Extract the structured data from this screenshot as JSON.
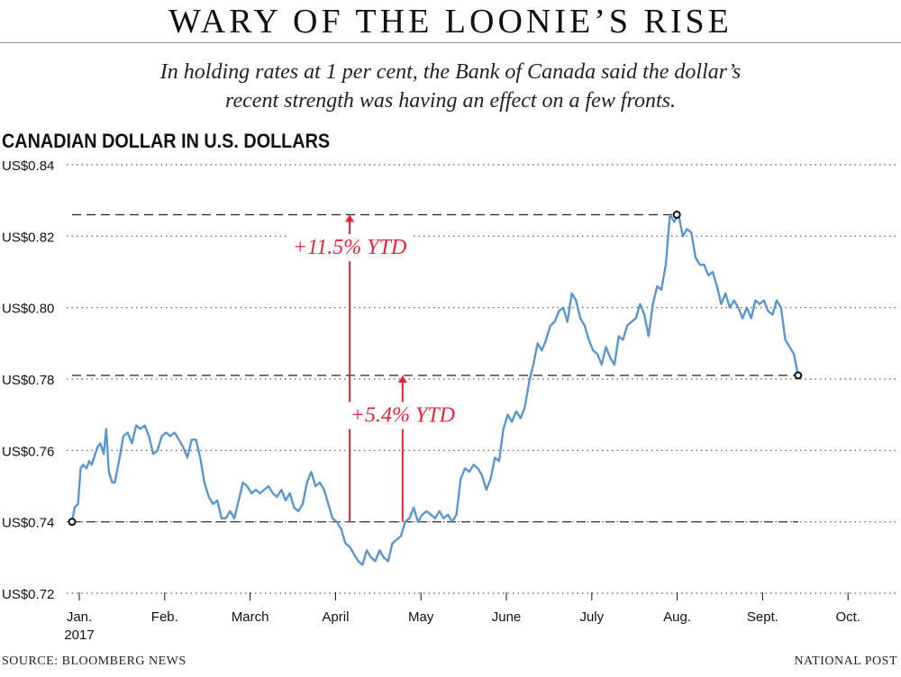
{
  "headline": "WARY OF THE LOONIE’S RISE",
  "deck_line1": "In holding rates at 1 per cent, the Bank of Canada said the dollar’s",
  "deck_line2": "recent strength was having an effect on a few fronts.",
  "footer": {
    "source": "SOURCE: BLOOMBERG NEWS",
    "credit": "NATIONAL POST"
  },
  "colors": {
    "line": "#5b97cc",
    "annotation": "#e0263a",
    "text": "#111111",
    "grid": "#555555"
  },
  "chart_data": {
    "type": "line",
    "title": "CANADIAN DOLLAR IN  U.S. DOLLARS",
    "ylim": [
      0.72,
      0.84
    ],
    "yticks": [
      0.72,
      0.74,
      0.76,
      0.78,
      0.8,
      0.82,
      0.84
    ],
    "ytick_labels": [
      "US$0.72",
      "US$0.74",
      "US$0.76",
      "US$0.78",
      "US$0.80",
      "US$0.82",
      "US$0.84"
    ],
    "grid": "horizontal dotted",
    "xticks": [
      {
        "label": "Jan.",
        "sublabel": "2017",
        "month": 0
      },
      {
        "label": "Feb.",
        "month": 1
      },
      {
        "label": "March",
        "month": 2
      },
      {
        "label": "April",
        "month": 3
      },
      {
        "label": "May",
        "month": 4
      },
      {
        "label": "June",
        "month": 5
      },
      {
        "label": "July",
        "month": 6
      },
      {
        "label": "Aug.",
        "month": 7
      },
      {
        "label": "Sept.",
        "month": 8
      },
      {
        "label": "Oct.",
        "month": 9
      }
    ],
    "series": [
      {
        "points": [
          [
            0.0,
            0.74
          ],
          [
            0.03,
            0.744
          ],
          [
            0.07,
            0.745
          ],
          [
            0.1,
            0.755
          ],
          [
            0.13,
            0.756
          ],
          [
            0.17,
            0.755
          ],
          [
            0.2,
            0.757
          ],
          [
            0.23,
            0.756
          ],
          [
            0.27,
            0.759
          ],
          [
            0.3,
            0.761
          ],
          [
            0.33,
            0.762
          ],
          [
            0.37,
            0.759
          ],
          [
            0.4,
            0.766
          ],
          [
            0.43,
            0.754
          ],
          [
            0.47,
            0.751
          ],
          [
            0.5,
            0.751
          ],
          [
            0.55,
            0.757
          ],
          [
            0.6,
            0.764
          ],
          [
            0.65,
            0.765
          ],
          [
            0.7,
            0.762
          ],
          [
            0.75,
            0.767
          ],
          [
            0.8,
            0.766
          ],
          [
            0.85,
            0.767
          ],
          [
            0.9,
            0.764
          ],
          [
            0.95,
            0.759
          ],
          [
            1.0,
            0.76
          ],
          [
            1.05,
            0.764
          ],
          [
            1.1,
            0.765
          ],
          [
            1.15,
            0.764
          ],
          [
            1.2,
            0.765
          ],
          [
            1.25,
            0.763
          ],
          [
            1.3,
            0.761
          ],
          [
            1.35,
            0.758
          ],
          [
            1.4,
            0.763
          ],
          [
            1.45,
            0.763
          ],
          [
            1.5,
            0.758
          ],
          [
            1.55,
            0.751
          ],
          [
            1.6,
            0.747
          ],
          [
            1.65,
            0.745
          ],
          [
            1.7,
            0.746
          ],
          [
            1.75,
            0.741
          ],
          [
            1.8,
            0.741
          ],
          [
            1.85,
            0.743
          ],
          [
            1.9,
            0.741
          ],
          [
            1.95,
            0.746
          ],
          [
            2.0,
            0.751
          ],
          [
            2.05,
            0.75
          ],
          [
            2.1,
            0.748
          ],
          [
            2.15,
            0.749
          ],
          [
            2.2,
            0.748
          ],
          [
            2.25,
            0.749
          ],
          [
            2.3,
            0.75
          ],
          [
            2.35,
            0.748
          ],
          [
            2.4,
            0.747
          ],
          [
            2.45,
            0.749
          ],
          [
            2.5,
            0.746
          ],
          [
            2.55,
            0.748
          ],
          [
            2.6,
            0.744
          ],
          [
            2.65,
            0.743
          ],
          [
            2.7,
            0.745
          ],
          [
            2.75,
            0.751
          ],
          [
            2.8,
            0.754
          ],
          [
            2.85,
            0.75
          ],
          [
            2.9,
            0.751
          ],
          [
            2.95,
            0.749
          ],
          [
            3.0,
            0.745
          ],
          [
            3.05,
            0.741
          ],
          [
            3.1,
            0.74
          ],
          [
            3.15,
            0.738
          ],
          [
            3.2,
            0.734
          ],
          [
            3.25,
            0.733
          ],
          [
            3.3,
            0.731
          ],
          [
            3.35,
            0.729
          ],
          [
            3.4,
            0.728
          ],
          [
            3.45,
            0.732
          ],
          [
            3.5,
            0.73
          ],
          [
            3.55,
            0.729
          ],
          [
            3.6,
            0.732
          ],
          [
            3.65,
            0.73
          ],
          [
            3.7,
            0.729
          ],
          [
            3.75,
            0.734
          ],
          [
            3.8,
            0.735
          ],
          [
            3.85,
            0.736
          ],
          [
            3.9,
            0.74
          ],
          [
            3.95,
            0.741
          ],
          [
            4.0,
            0.744
          ],
          [
            4.05,
            0.74
          ],
          [
            4.1,
            0.742
          ],
          [
            4.15,
            0.743
          ],
          [
            4.2,
            0.742
          ],
          [
            4.25,
            0.741
          ],
          [
            4.3,
            0.743
          ],
          [
            4.35,
            0.741
          ],
          [
            4.4,
            0.742
          ],
          [
            4.45,
            0.74
          ],
          [
            4.5,
            0.742
          ],
          [
            4.55,
            0.752
          ],
          [
            4.6,
            0.755
          ],
          [
            4.65,
            0.754
          ],
          [
            4.7,
            0.756
          ],
          [
            4.75,
            0.755
          ],
          [
            4.8,
            0.753
          ],
          [
            4.85,
            0.749
          ],
          [
            4.9,
            0.752
          ],
          [
            4.95,
            0.758
          ],
          [
            5.0,
            0.757
          ],
          [
            5.05,
            0.766
          ],
          [
            5.1,
            0.77
          ],
          [
            5.15,
            0.768
          ],
          [
            5.2,
            0.771
          ],
          [
            5.25,
            0.769
          ],
          [
            5.3,
            0.772
          ],
          [
            5.35,
            0.779
          ],
          [
            5.4,
            0.784
          ],
          [
            5.45,
            0.79
          ],
          [
            5.5,
            0.788
          ],
          [
            5.55,
            0.791
          ],
          [
            5.6,
            0.795
          ],
          [
            5.65,
            0.796
          ],
          [
            5.7,
            0.799
          ],
          [
            5.75,
            0.8
          ],
          [
            5.8,
            0.796
          ],
          [
            5.85,
            0.804
          ],
          [
            5.9,
            0.802
          ],
          [
            5.95,
            0.797
          ],
          [
            6.0,
            0.795
          ],
          [
            6.05,
            0.791
          ],
          [
            6.1,
            0.788
          ],
          [
            6.15,
            0.787
          ],
          [
            6.2,
            0.784
          ],
          [
            6.25,
            0.789
          ],
          [
            6.3,
            0.786
          ],
          [
            6.35,
            0.784
          ],
          [
            6.4,
            0.792
          ],
          [
            6.45,
            0.791
          ],
          [
            6.5,
            0.795
          ],
          [
            6.55,
            0.796
          ],
          [
            6.6,
            0.797
          ],
          [
            6.65,
            0.801
          ],
          [
            6.7,
            0.798
          ],
          [
            6.75,
            0.792
          ],
          [
            6.8,
            0.801
          ],
          [
            6.85,
            0.806
          ],
          [
            6.9,
            0.805
          ],
          [
            6.95,
            0.812
          ],
          [
            7.0,
            0.826
          ],
          [
            7.05,
            0.824
          ],
          [
            7.1,
            0.826
          ],
          [
            7.15,
            0.82
          ],
          [
            7.2,
            0.822
          ],
          [
            7.25,
            0.821
          ],
          [
            7.3,
            0.814
          ],
          [
            7.35,
            0.812
          ],
          [
            7.4,
            0.812
          ],
          [
            7.45,
            0.809
          ],
          [
            7.5,
            0.81
          ],
          [
            7.55,
            0.806
          ],
          [
            7.6,
            0.801
          ],
          [
            7.65,
            0.804
          ],
          [
            7.7,
            0.8
          ],
          [
            7.75,
            0.802
          ],
          [
            7.8,
            0.8
          ],
          [
            7.85,
            0.797
          ],
          [
            7.9,
            0.8
          ],
          [
            7.95,
            0.797
          ],
          [
            8.0,
            0.802
          ],
          [
            8.05,
            0.801
          ],
          [
            8.1,
            0.802
          ],
          [
            8.15,
            0.799
          ],
          [
            8.2,
            0.798
          ],
          [
            8.25,
            0.802
          ],
          [
            8.3,
            0.8
          ],
          [
            8.35,
            0.791
          ],
          [
            8.4,
            0.789
          ],
          [
            8.45,
            0.787
          ],
          [
            8.5,
            0.781
          ]
        ]
      }
    ],
    "markers": [
      {
        "x": 0.0,
        "y": 0.74
      },
      {
        "x": 7.08,
        "y": 0.826
      },
      {
        "x": 8.5,
        "y": 0.781
      }
    ],
    "reference_lines": [
      {
        "y": 0.826,
        "x_end": 7.08
      },
      {
        "y": 0.781,
        "x_end": 8.5
      },
      {
        "y": 0.74,
        "x_end": 8.5
      }
    ],
    "annotations": [
      {
        "label": "+11.5% YTD",
        "x": 3.25,
        "y_from": 0.74,
        "y_to": 0.826,
        "label_y": 0.815
      },
      {
        "label": "+5.4% YTD",
        "x": 3.87,
        "y_from": 0.74,
        "y_to": 0.781,
        "label_y": 0.768
      }
    ]
  }
}
